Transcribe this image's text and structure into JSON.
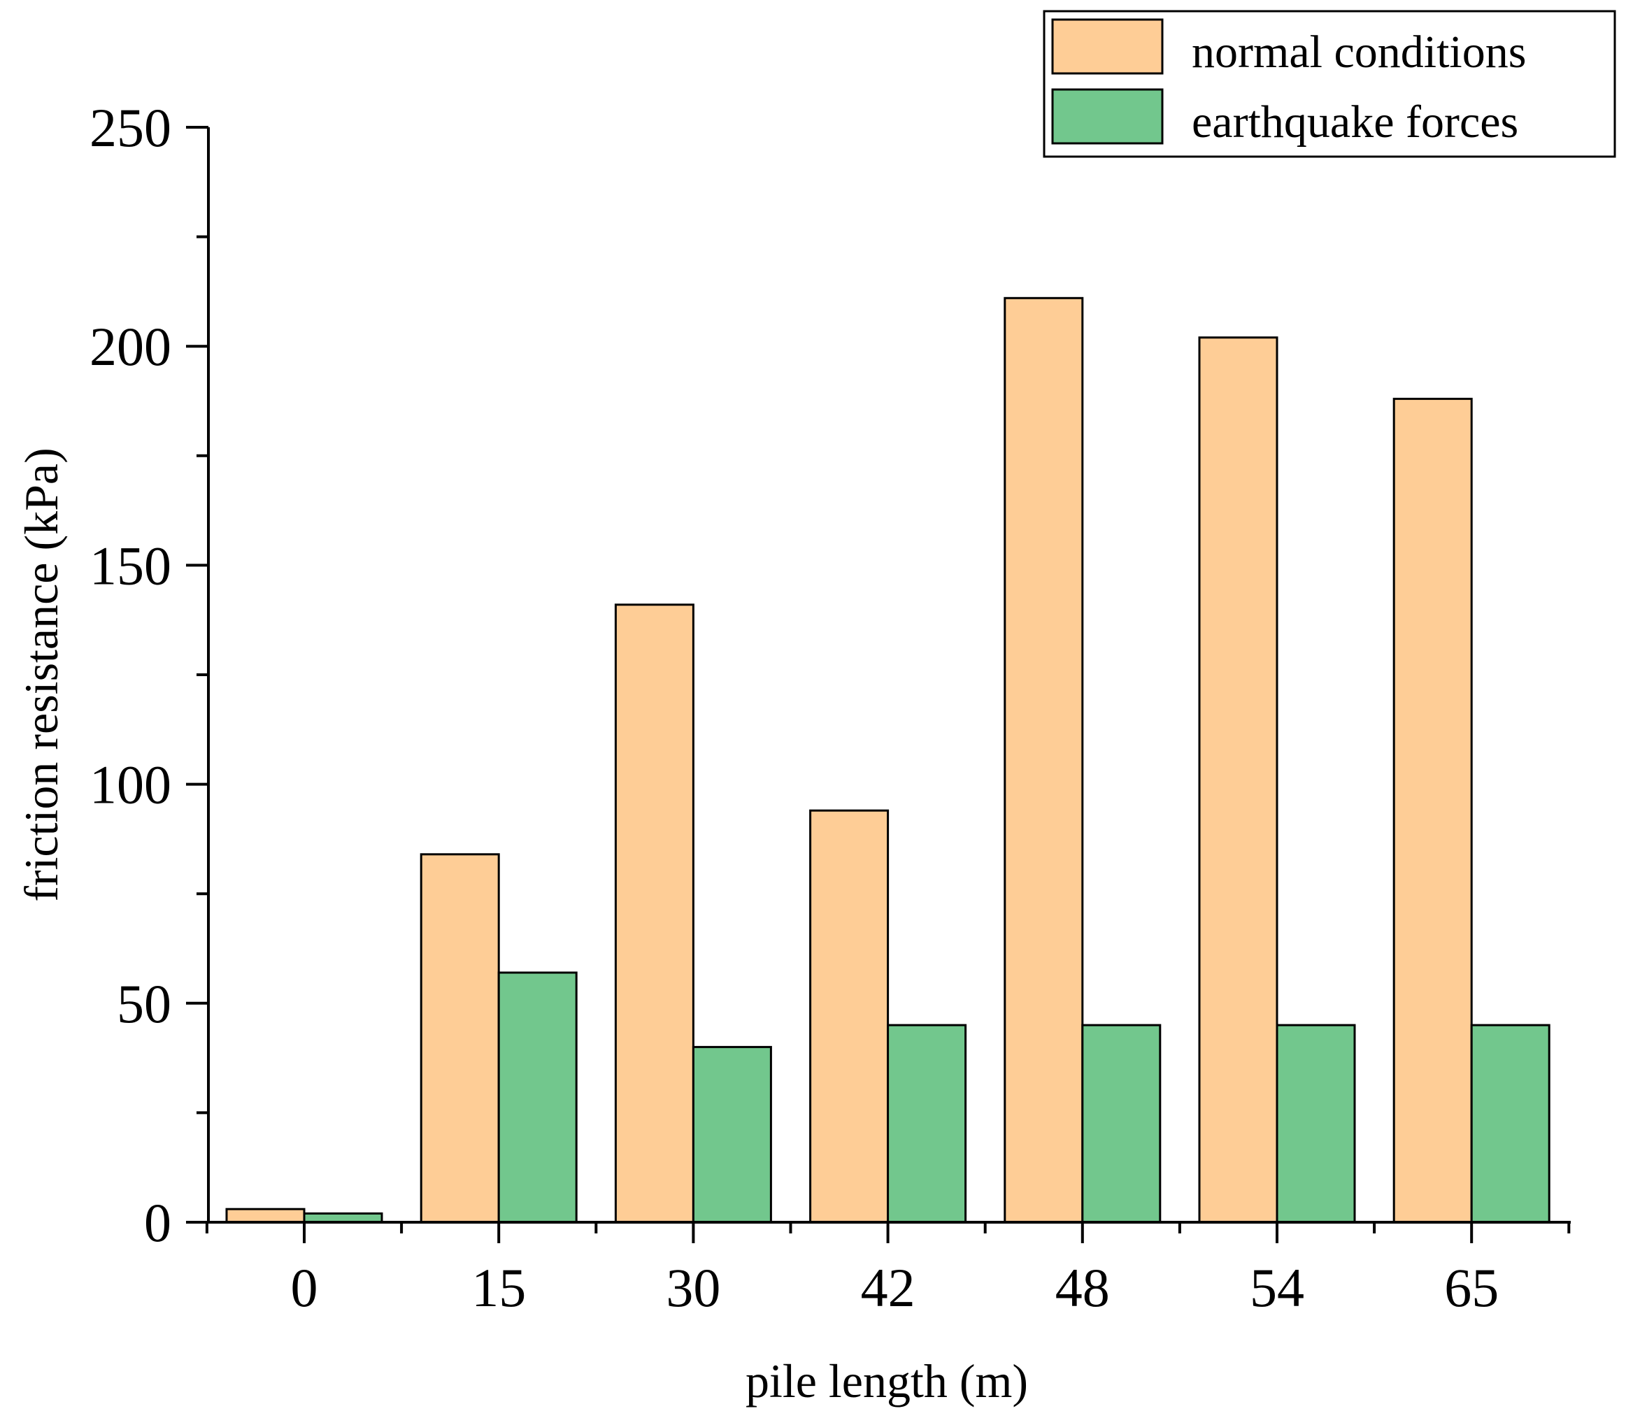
{
  "chart_data": {
    "type": "bar",
    "title": "",
    "xlabel": "pile length (m)",
    "ylabel": "friction resistance (kPa)",
    "categories": [
      "0",
      "15",
      "30",
      "42",
      "48",
      "54",
      "65"
    ],
    "series": [
      {
        "name": "normal conditions",
        "color": "#FECD96",
        "values": [
          3,
          84,
          141,
          94,
          211,
          202,
          188
        ]
      },
      {
        "name": "earthquake forces",
        "color": "#72C78D",
        "values": [
          2,
          57,
          40,
          45,
          45,
          45,
          45
        ]
      }
    ],
    "ylim": [
      0,
      250
    ],
    "yticks": [
      0,
      50,
      100,
      150,
      200,
      250
    ],
    "grid": false,
    "legend_position": "top-right"
  }
}
